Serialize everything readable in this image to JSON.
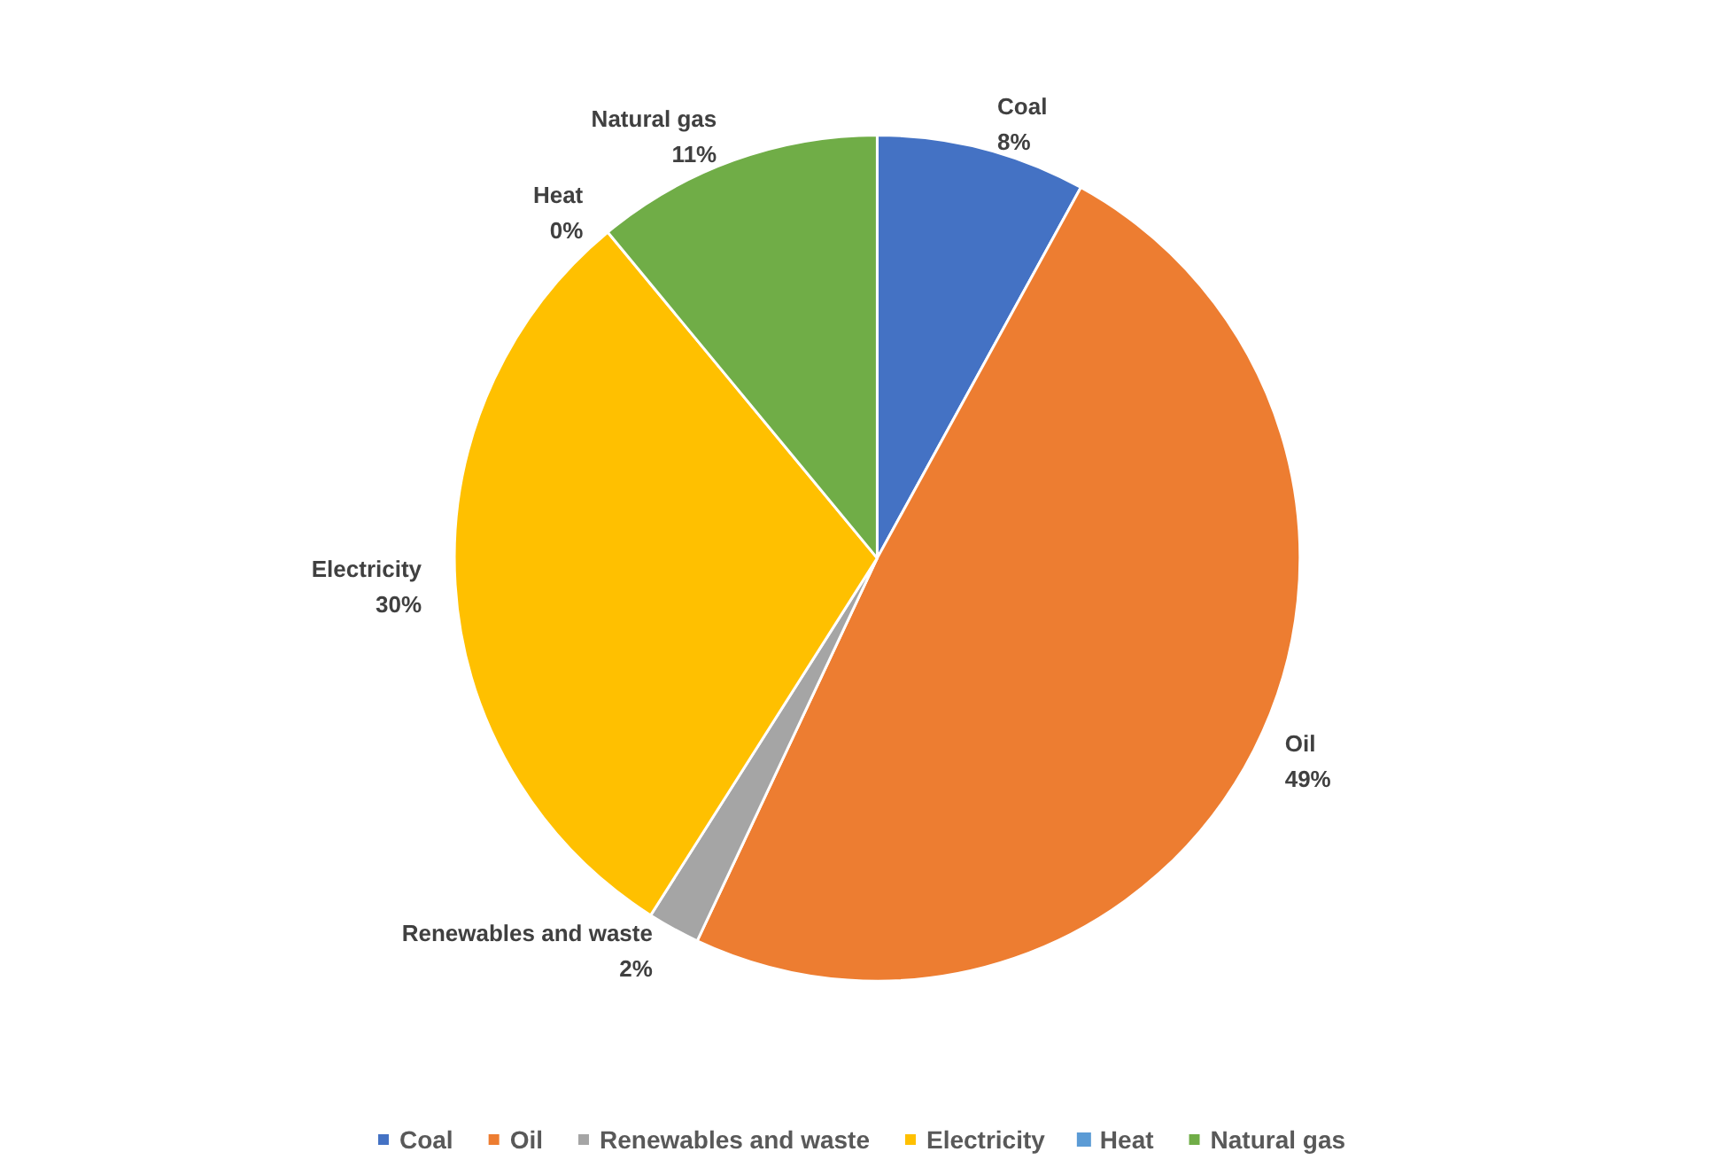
{
  "chart_data": {
    "type": "pie",
    "categories": [
      "Coal",
      "Oil",
      "Renewables and waste",
      "Electricity",
      "Heat",
      "Natural gas"
    ],
    "values": [
      8,
      49,
      2,
      30,
      0,
      11
    ],
    "colors": [
      "#4472c4",
      "#ed7d31",
      "#a5a5a5",
      "#ffc000",
      "#5b9bd5",
      "#70ad47"
    ],
    "value_labels": [
      "8%",
      "49%",
      "2%",
      "30%",
      "0%",
      "11%"
    ],
    "legend": "bottom"
  }
}
